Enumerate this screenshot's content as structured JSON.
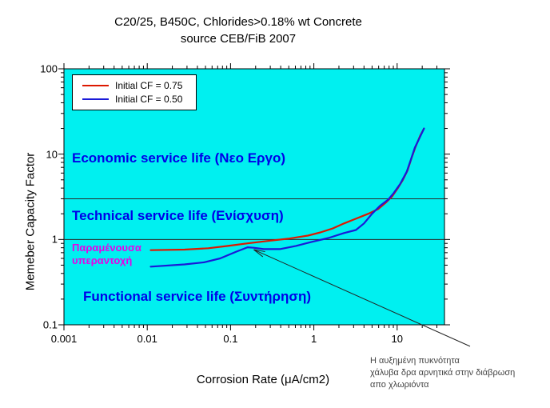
{
  "title": {
    "line1": "C20/25, B450C, Chlorides>0.18% wt Concrete",
    "line2": "source CEB/FiB 2007"
  },
  "colors": {
    "plot_background": "#00f0f0",
    "axis": "#000000",
    "threshold_line": "#2a2a2a",
    "annotation_blue": "#0000e8",
    "annotation_magenta": "#e800e8",
    "note_text": "#444444",
    "series_red": "#dd1800",
    "series_blue": "#1a1ad8"
  },
  "chart_data": {
    "type": "line",
    "title": "C20/25, B450C, Chlorides>0.18% wt Concrete — source CEB/FiB 2007",
    "xlabel": "Corrosion Rate (μA/cm2)",
    "ylabel": "Memeber Capacity Factor",
    "x_scale": "log",
    "y_scale": "log",
    "xlim": [
      0.001,
      37
    ],
    "ylim": [
      0.1,
      100
    ],
    "grid": false,
    "legend_position": "top-left",
    "x_ticks": [
      {
        "v": 0.001,
        "label": "0.001"
      },
      {
        "v": 0.01,
        "label": "0.01"
      },
      {
        "v": 0.1,
        "label": "0.1"
      },
      {
        "v": 1,
        "label": "1"
      },
      {
        "v": 10,
        "label": "10"
      }
    ],
    "y_ticks": [
      {
        "v": 0.1,
        "label": "0.1"
      },
      {
        "v": 1,
        "label": "1"
      },
      {
        "v": 10,
        "label": "10"
      },
      {
        "v": 100,
        "label": "100"
      }
    ],
    "threshold_lines_y": [
      1,
      3
    ],
    "series": [
      {
        "name": "Initial CF = 0.75",
        "color": "#dd1800",
        "points": [
          [
            0.011,
            0.75
          ],
          [
            0.028,
            0.76
          ],
          [
            0.054,
            0.79
          ],
          [
            0.093,
            0.84
          ],
          [
            0.16,
            0.9
          ],
          [
            0.28,
            0.96
          ],
          [
            0.49,
            1.02
          ],
          [
            0.85,
            1.11
          ],
          [
            1.2,
            1.21
          ],
          [
            1.7,
            1.35
          ],
          [
            2.3,
            1.54
          ],
          [
            3.2,
            1.75
          ],
          [
            4.5,
            2.0
          ],
          [
            5.9,
            2.27
          ],
          [
            7.3,
            2.7
          ],
          [
            8.7,
            3.2
          ],
          [
            10.2,
            4.0
          ],
          [
            11.6,
            4.9
          ],
          [
            13.3,
            6.4
          ],
          [
            14.9,
            9.0
          ],
          [
            16.6,
            12.1
          ],
          [
            18.9,
            16.4
          ],
          [
            21,
            20
          ]
        ]
      },
      {
        "name": "Initial CF = 0.50",
        "color": "#1a1ad8",
        "points": [
          [
            0.011,
            0.48
          ],
          [
            0.028,
            0.51
          ],
          [
            0.048,
            0.54
          ],
          [
            0.075,
            0.6
          ],
          [
            0.117,
            0.72
          ],
          [
            0.16,
            0.81
          ],
          [
            0.19,
            0.8
          ],
          [
            0.25,
            0.77
          ],
          [
            0.39,
            0.77
          ],
          [
            0.61,
            0.84
          ],
          [
            0.96,
            0.94
          ],
          [
            1.5,
            1.04
          ],
          [
            2.3,
            1.19
          ],
          [
            3.2,
            1.29
          ],
          [
            4.0,
            1.54
          ],
          [
            5.0,
            2.0
          ],
          [
            6.2,
            2.47
          ],
          [
            7.8,
            2.93
          ],
          [
            9.1,
            3.5
          ],
          [
            10.9,
            4.5
          ],
          [
            13.0,
            6.2
          ],
          [
            14.6,
            8.6
          ],
          [
            16.3,
            11.9
          ],
          [
            18.7,
            15.7
          ],
          [
            21,
            20
          ]
        ]
      }
    ],
    "note_arrow": {
      "from_xy": [
        75,
        0.056
      ],
      "to_xy": [
        0.19,
        0.76
      ]
    }
  },
  "annotations": {
    "economic": "Economic service life (Νεο Εργο)",
    "technical": "Technical service life (Ενίσχυση)",
    "residual": "Παραμένουσα\nυπεραντοχή",
    "functional": "Functional service life (Συντήρηση)",
    "note": "Η αυξημένη πυκνότητα\nχάλυβα δρα αρνητικά στην διάβρωση\nαπο χλωριόντα"
  }
}
